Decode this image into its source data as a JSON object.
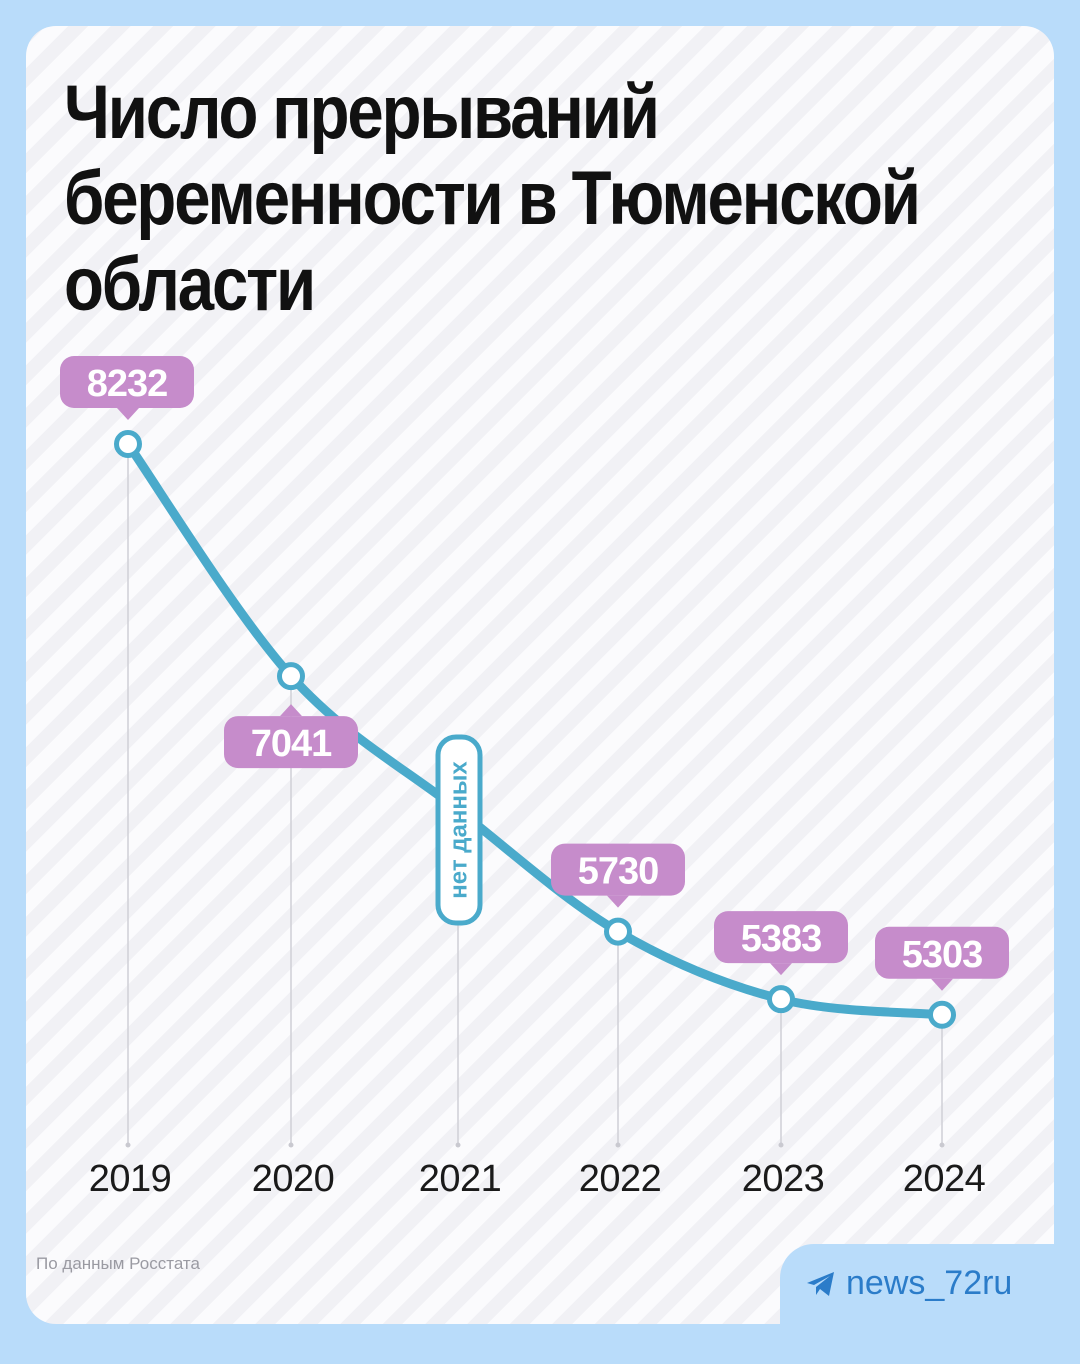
{
  "title_lines": [
    "Число прерываний",
    "беременности в Тюменской",
    "области"
  ],
  "source": "По данным Росстата",
  "brand": {
    "icon": "telegram-icon",
    "handle": "news_72ru"
  },
  "colors": {
    "line": "#4aaacb",
    "badge": "#c68ccb",
    "badge_text": "#ffffff",
    "no_data_border": "#4aaacb",
    "no_data_text": "#4aaacb",
    "brand": "#2b7cc9",
    "background_outer": "#b9dcfa"
  },
  "chart_data": {
    "type": "line",
    "categories": [
      "2019",
      "2020",
      "2021",
      "2022",
      "2023",
      "2024"
    ],
    "values": [
      8232,
      7041,
      null,
      5730,
      5383,
      5303
    ],
    "labels": [
      "8232",
      "7041",
      "нет данных",
      "5730",
      "5383",
      "5303"
    ],
    "missing_label": "нет данных",
    "title": "Число прерываний беременности в Тюменской области",
    "xlabel": "",
    "ylabel": "",
    "grid": false,
    "legend": "none"
  }
}
